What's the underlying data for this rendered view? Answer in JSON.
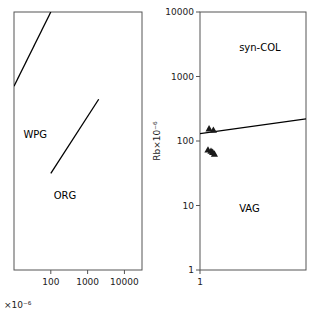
{
  "chart_data": [
    {
      "type": "line",
      "log": true,
      "grid": false,
      "tick_labels": "x",
      "xlabel": "×10⁻⁶",
      "xlim": [
        10,
        30000
      ],
      "ylim": [
        10,
        30000
      ],
      "xticks": [
        100,
        1000,
        10000
      ],
      "series": [
        {
          "type": "line",
          "color": "#000000",
          "x": [
            10,
            100
          ],
          "values": [
            3000,
            30000
          ]
        },
        {
          "type": "line",
          "color": "#000000",
          "x": [
            100,
            2000
          ],
          "values": [
            200,
            2000
          ]
        }
      ],
      "annotations": [
        {
          "text": "WPG",
          "x": 18,
          "y": 600,
          "color": "#000000"
        },
        {
          "text": "ORG",
          "x": 120,
          "y": 90,
          "color": "#000000"
        }
      ]
    },
    {
      "type": "line",
      "log": true,
      "grid": false,
      "ylabel": "Rb×10⁻⁶",
      "xlim": [
        1,
        10000
      ],
      "ylim": [
        1,
        10000
      ],
      "xticks": [
        1
      ],
      "yticks": [
        1,
        10,
        100,
        1000,
        10000
      ],
      "series": [
        {
          "type": "line",
          "color": "#000000",
          "x": [
            1,
            10000
          ],
          "values": [
            130,
            220
          ]
        },
        {
          "type": "scatter",
          "marker": "triangle",
          "color": "#1a1a1a",
          "x": [
            2.2,
            3.2
          ],
          "values": [
            155,
            148
          ]
        },
        {
          "type": "scatter",
          "marker": "triangle",
          "color": "#1a1a1a",
          "x": [
            2.0,
            2.6,
            3.0,
            3.5
          ],
          "values": [
            73,
            70,
            67,
            63
          ]
        }
      ],
      "annotations": [
        {
          "text": "syn-COL",
          "x": 30,
          "y": 2500,
          "color": "#000000"
        },
        {
          "text": "VAG",
          "x": 30,
          "y": 8,
          "color": "#000000"
        }
      ]
    }
  ]
}
